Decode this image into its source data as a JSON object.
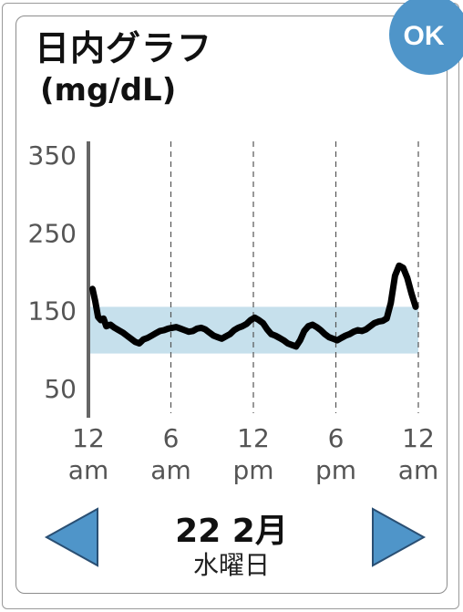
{
  "title": "日内グラフ",
  "unit_label": "(mg/dL)",
  "ok_label": "OK",
  "date_label": "22 2月",
  "weekday_label": "水曜日",
  "icons": {
    "previous": "triangle-left-icon",
    "next": "triangle-right-icon"
  },
  "colors": {
    "accent": "#4f95c9",
    "target_band": "#c6e0ec",
    "trace": "#000000"
  },
  "chart_data": {
    "type": "line",
    "y_ticks": [
      "350",
      "250",
      "150",
      "50"
    ],
    "y_tick_values": [
      350,
      250,
      150,
      50
    ],
    "x_ticks": [
      {
        "top": "12",
        "bottom": "am"
      },
      {
        "top": "6",
        "bottom": "am"
      },
      {
        "top": "12",
        "bottom": "pm"
      },
      {
        "top": "6",
        "bottom": "pm"
      },
      {
        "top": "12",
        "bottom": "am"
      }
    ],
    "x_tick_hours": [
      0,
      6,
      12,
      18,
      24
    ],
    "ylim": [
      40,
      370
    ],
    "xlim": [
      0,
      24
    ],
    "target_range": [
      95,
      155
    ],
    "grid": "vertical dashed",
    "series": [
      {
        "x": [
          0.3,
          0.5,
          0.7,
          0.9,
          1.1,
          1.3,
          1.6,
          1.9,
          2.2,
          2.5,
          2.8,
          3.1,
          3.4,
          3.7,
          4.0,
          4.3,
          4.6,
          4.9,
          5.2,
          5.5,
          5.8,
          6.1,
          6.4,
          6.7,
          7.0,
          7.3,
          7.6,
          7.9,
          8.2,
          8.5,
          8.8,
          9.1,
          9.4,
          9.7,
          10.0,
          10.3,
          10.6,
          10.9,
          11.2,
          11.5,
          11.8,
          12.1,
          12.4,
          12.7,
          13.0,
          13.3,
          13.6,
          13.9,
          14.2,
          14.5,
          14.8,
          15.1,
          15.4,
          15.7,
          16.0,
          16.3,
          16.6,
          16.9,
          17.2,
          17.5,
          17.8,
          18.1,
          18.4,
          18.7,
          19.0,
          19.3,
          19.6,
          19.9,
          20.2,
          20.5,
          20.8,
          21.1,
          21.4,
          21.7,
          22.0,
          22.3,
          22.6,
          22.9,
          23.2,
          23.5,
          23.8
        ],
        "y": [
          178,
          162,
          142,
          138,
          140,
          130,
          132,
          128,
          125,
          122,
          118,
          114,
          110,
          108,
          113,
          115,
          118,
          121,
          124,
          125,
          127,
          128,
          129,
          127,
          125,
          123,
          124,
          127,
          128,
          126,
          122,
          118,
          116,
          114,
          117,
          120,
          125,
          128,
          130,
          133,
          138,
          141,
          138,
          134,
          126,
          120,
          118,
          115,
          112,
          108,
          106,
          104,
          112,
          124,
          130,
          132,
          129,
          125,
          120,
          116,
          114,
          112,
          115,
          118,
          120,
          123,
          125,
          124,
          126,
          130,
          134,
          136,
          137,
          140,
          160,
          195,
          208,
          205,
          192,
          172,
          155
        ]
      }
    ]
  }
}
